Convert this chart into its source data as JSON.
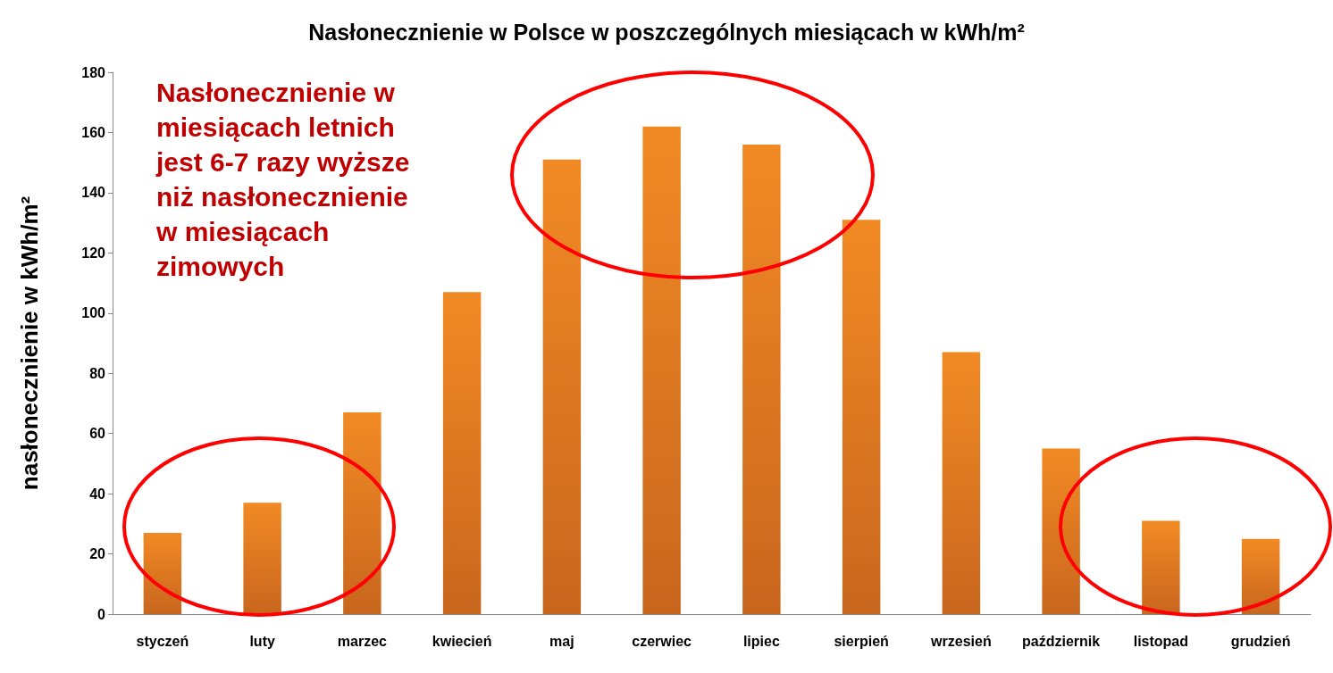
{
  "chart_data": {
    "type": "bar",
    "title": "Nasłonecznienie w Polsce w poszczególnych miesiącach w kWh/m²",
    "ylabel": "nasłonecznienie w kWh/m²",
    "categories": [
      "styczeń",
      "luty",
      "marzec",
      "kwiecień",
      "maj",
      "czerwiec",
      "lipiec",
      "sierpień",
      "wrzesień",
      "październik",
      "listopad",
      "grudzień"
    ],
    "values": [
      27,
      37,
      67,
      107,
      151,
      162,
      156,
      131,
      87,
      55,
      31,
      25
    ],
    "color": "#f28a24",
    "ylim": [
      0,
      180
    ],
    "yticks": [
      0,
      20,
      40,
      60,
      80,
      100,
      120,
      140,
      160,
      180
    ],
    "grid": false,
    "annotations": [
      "Nasłonecznienie w\nmiesiącach letnich\njest 6-7 razy wyższe\nniż nasłonecznienie\nw miesiącach\nzimowych"
    ]
  }
}
